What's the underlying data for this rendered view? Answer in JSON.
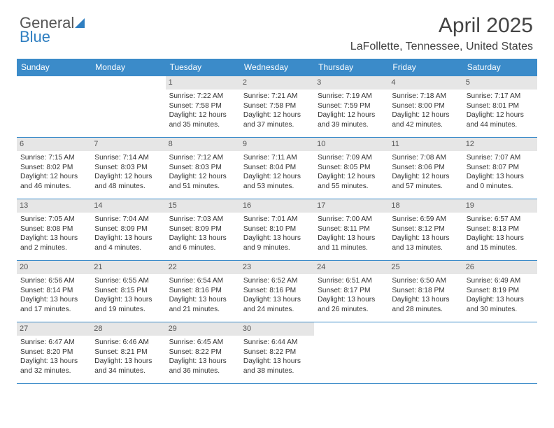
{
  "logo": {
    "line1": "General",
    "line2": "Blue",
    "icon_color": "#2f7fc1"
  },
  "title": "April 2025",
  "location": "LaFollette, Tennessee, United States",
  "colors": {
    "header_bg": "#3b8bc9",
    "header_fg": "#ffffff",
    "daynum_bg": "#e6e6e6",
    "border": "#3b8bc9",
    "text": "#333333"
  },
  "day_headers": [
    "Sunday",
    "Monday",
    "Tuesday",
    "Wednesday",
    "Thursday",
    "Friday",
    "Saturday"
  ],
  "weeks": [
    [
      {
        "num": "",
        "lines": []
      },
      {
        "num": "",
        "lines": []
      },
      {
        "num": "1",
        "lines": [
          "Sunrise: 7:22 AM",
          "Sunset: 7:58 PM",
          "Daylight: 12 hours",
          "and 35 minutes."
        ]
      },
      {
        "num": "2",
        "lines": [
          "Sunrise: 7:21 AM",
          "Sunset: 7:58 PM",
          "Daylight: 12 hours",
          "and 37 minutes."
        ]
      },
      {
        "num": "3",
        "lines": [
          "Sunrise: 7:19 AM",
          "Sunset: 7:59 PM",
          "Daylight: 12 hours",
          "and 39 minutes."
        ]
      },
      {
        "num": "4",
        "lines": [
          "Sunrise: 7:18 AM",
          "Sunset: 8:00 PM",
          "Daylight: 12 hours",
          "and 42 minutes."
        ]
      },
      {
        "num": "5",
        "lines": [
          "Sunrise: 7:17 AM",
          "Sunset: 8:01 PM",
          "Daylight: 12 hours",
          "and 44 minutes."
        ]
      }
    ],
    [
      {
        "num": "6",
        "lines": [
          "Sunrise: 7:15 AM",
          "Sunset: 8:02 PM",
          "Daylight: 12 hours",
          "and 46 minutes."
        ]
      },
      {
        "num": "7",
        "lines": [
          "Sunrise: 7:14 AM",
          "Sunset: 8:03 PM",
          "Daylight: 12 hours",
          "and 48 minutes."
        ]
      },
      {
        "num": "8",
        "lines": [
          "Sunrise: 7:12 AM",
          "Sunset: 8:03 PM",
          "Daylight: 12 hours",
          "and 51 minutes."
        ]
      },
      {
        "num": "9",
        "lines": [
          "Sunrise: 7:11 AM",
          "Sunset: 8:04 PM",
          "Daylight: 12 hours",
          "and 53 minutes."
        ]
      },
      {
        "num": "10",
        "lines": [
          "Sunrise: 7:09 AM",
          "Sunset: 8:05 PM",
          "Daylight: 12 hours",
          "and 55 minutes."
        ]
      },
      {
        "num": "11",
        "lines": [
          "Sunrise: 7:08 AM",
          "Sunset: 8:06 PM",
          "Daylight: 12 hours",
          "and 57 minutes."
        ]
      },
      {
        "num": "12",
        "lines": [
          "Sunrise: 7:07 AM",
          "Sunset: 8:07 PM",
          "Daylight: 13 hours",
          "and 0 minutes."
        ]
      }
    ],
    [
      {
        "num": "13",
        "lines": [
          "Sunrise: 7:05 AM",
          "Sunset: 8:08 PM",
          "Daylight: 13 hours",
          "and 2 minutes."
        ]
      },
      {
        "num": "14",
        "lines": [
          "Sunrise: 7:04 AM",
          "Sunset: 8:09 PM",
          "Daylight: 13 hours",
          "and 4 minutes."
        ]
      },
      {
        "num": "15",
        "lines": [
          "Sunrise: 7:03 AM",
          "Sunset: 8:09 PM",
          "Daylight: 13 hours",
          "and 6 minutes."
        ]
      },
      {
        "num": "16",
        "lines": [
          "Sunrise: 7:01 AM",
          "Sunset: 8:10 PM",
          "Daylight: 13 hours",
          "and 9 minutes."
        ]
      },
      {
        "num": "17",
        "lines": [
          "Sunrise: 7:00 AM",
          "Sunset: 8:11 PM",
          "Daylight: 13 hours",
          "and 11 minutes."
        ]
      },
      {
        "num": "18",
        "lines": [
          "Sunrise: 6:59 AM",
          "Sunset: 8:12 PM",
          "Daylight: 13 hours",
          "and 13 minutes."
        ]
      },
      {
        "num": "19",
        "lines": [
          "Sunrise: 6:57 AM",
          "Sunset: 8:13 PM",
          "Daylight: 13 hours",
          "and 15 minutes."
        ]
      }
    ],
    [
      {
        "num": "20",
        "lines": [
          "Sunrise: 6:56 AM",
          "Sunset: 8:14 PM",
          "Daylight: 13 hours",
          "and 17 minutes."
        ]
      },
      {
        "num": "21",
        "lines": [
          "Sunrise: 6:55 AM",
          "Sunset: 8:15 PM",
          "Daylight: 13 hours",
          "and 19 minutes."
        ]
      },
      {
        "num": "22",
        "lines": [
          "Sunrise: 6:54 AM",
          "Sunset: 8:16 PM",
          "Daylight: 13 hours",
          "and 21 minutes."
        ]
      },
      {
        "num": "23",
        "lines": [
          "Sunrise: 6:52 AM",
          "Sunset: 8:16 PM",
          "Daylight: 13 hours",
          "and 24 minutes."
        ]
      },
      {
        "num": "24",
        "lines": [
          "Sunrise: 6:51 AM",
          "Sunset: 8:17 PM",
          "Daylight: 13 hours",
          "and 26 minutes."
        ]
      },
      {
        "num": "25",
        "lines": [
          "Sunrise: 6:50 AM",
          "Sunset: 8:18 PM",
          "Daylight: 13 hours",
          "and 28 minutes."
        ]
      },
      {
        "num": "26",
        "lines": [
          "Sunrise: 6:49 AM",
          "Sunset: 8:19 PM",
          "Daylight: 13 hours",
          "and 30 minutes."
        ]
      }
    ],
    [
      {
        "num": "27",
        "lines": [
          "Sunrise: 6:47 AM",
          "Sunset: 8:20 PM",
          "Daylight: 13 hours",
          "and 32 minutes."
        ]
      },
      {
        "num": "28",
        "lines": [
          "Sunrise: 6:46 AM",
          "Sunset: 8:21 PM",
          "Daylight: 13 hours",
          "and 34 minutes."
        ]
      },
      {
        "num": "29",
        "lines": [
          "Sunrise: 6:45 AM",
          "Sunset: 8:22 PM",
          "Daylight: 13 hours",
          "and 36 minutes."
        ]
      },
      {
        "num": "30",
        "lines": [
          "Sunrise: 6:44 AM",
          "Sunset: 8:22 PM",
          "Daylight: 13 hours",
          "and 38 minutes."
        ]
      },
      {
        "num": "",
        "lines": []
      },
      {
        "num": "",
        "lines": []
      },
      {
        "num": "",
        "lines": []
      }
    ]
  ]
}
